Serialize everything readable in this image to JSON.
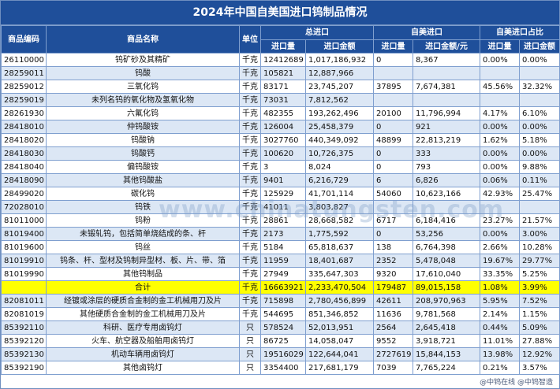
{
  "title": "2024年中国自美国进口钨制品情况",
  "headers": {
    "code": "商品编码",
    "name": "商品名称",
    "unit": "单位",
    "total_import": "总进口",
    "from_us": "自美进口",
    "share": "自美进口占比",
    "qty": "进口量",
    "amount": "进口金额",
    "amount_us": "进口金额/元",
    "qty_share": "进口量",
    "amount_share": "进口金额"
  },
  "rows": [
    {
      "code": "26110000",
      "name": "钨矿砂及其精矿",
      "unit": "千克",
      "qty": "12412689",
      "amount": "1,017,186,932",
      "us_qty": "0",
      "us_amount": "8,367",
      "qty_pct": "0.00%",
      "amt_pct": "0.00%",
      "style": "normal"
    },
    {
      "code": "28259011",
      "name": "钨酸",
      "unit": "千克",
      "qty": "105821",
      "amount": "12,887,966",
      "us_qty": "",
      "us_amount": "",
      "qty_pct": "",
      "amt_pct": "",
      "style": "alt"
    },
    {
      "code": "28259012",
      "name": "三氧化钨",
      "unit": "千克",
      "qty": "83171",
      "amount": "23,745,207",
      "us_qty": "37895",
      "us_amount": "7,674,381",
      "qty_pct": "45.56%",
      "amt_pct": "32.32%",
      "style": "normal"
    },
    {
      "code": "28259019",
      "name": "未列名钨的氧化物及氢氧化物",
      "unit": "千克",
      "qty": "73031",
      "amount": "7,812,562",
      "us_qty": "",
      "us_amount": "",
      "qty_pct": "",
      "amt_pct": "",
      "style": "alt"
    },
    {
      "code": "28261930",
      "name": "六氟化钨",
      "unit": "千克",
      "qty": "482355",
      "amount": "193,262,496",
      "us_qty": "20100",
      "us_amount": "11,796,994",
      "qty_pct": "4.17%",
      "amt_pct": "6.10%",
      "style": "normal"
    },
    {
      "code": "28418010",
      "name": "仲钨酸铵",
      "unit": "千克",
      "qty": "126004",
      "amount": "25,458,379",
      "us_qty": "0",
      "us_amount": "921",
      "qty_pct": "0.00%",
      "amt_pct": "0.00%",
      "style": "alt"
    },
    {
      "code": "28418020",
      "name": "钨酸钠",
      "unit": "千克",
      "qty": "3027760",
      "amount": "440,349,092",
      "us_qty": "48899",
      "us_amount": "22,813,219",
      "qty_pct": "1.62%",
      "amt_pct": "5.18%",
      "style": "normal"
    },
    {
      "code": "28418030",
      "name": "钨酸钙",
      "unit": "千克",
      "qty": "100620",
      "amount": "10,726,375",
      "us_qty": "0",
      "us_amount": "333",
      "qty_pct": "0.00%",
      "amt_pct": "0.00%",
      "style": "alt"
    },
    {
      "code": "28418040",
      "name": "偏钨酸铵",
      "unit": "千克",
      "qty": "3",
      "amount": "8,024",
      "us_qty": "0",
      "us_amount": "793",
      "qty_pct": "0.00%",
      "amt_pct": "9.88%",
      "style": "normal"
    },
    {
      "code": "28418090",
      "name": "其他钨酸盐",
      "unit": "千克",
      "qty": "9401",
      "amount": "6,216,729",
      "us_qty": "6",
      "us_amount": "6,826",
      "qty_pct": "0.06%",
      "amt_pct": "0.11%",
      "style": "alt"
    },
    {
      "code": "28499020",
      "name": "碳化钨",
      "unit": "千克",
      "qty": "125929",
      "amount": "41,701,114",
      "us_qty": "54060",
      "us_amount": "10,623,166",
      "qty_pct": "42.93%",
      "amt_pct": "25.47%",
      "style": "normal"
    },
    {
      "code": "72028010",
      "name": "钨铁",
      "unit": "千克",
      "qty": "41011",
      "amount": "3,803,827",
      "us_qty": "",
      "us_amount": "",
      "qty_pct": "",
      "amt_pct": "",
      "style": "alt"
    },
    {
      "code": "81011000",
      "name": "钨粉",
      "unit": "千克",
      "qty": "28861",
      "amount": "28,668,582",
      "us_qty": "6717",
      "us_amount": "6,184,416",
      "qty_pct": "23.27%",
      "amt_pct": "21.57%",
      "style": "normal"
    },
    {
      "code": "81019400",
      "name": "未锻轧钨，包括简单烧结成的条、杆",
      "unit": "千克",
      "qty": "2173",
      "amount": "1,775,592",
      "us_qty": "0",
      "us_amount": "53,256",
      "qty_pct": "0.00%",
      "amt_pct": "3.00%",
      "style": "alt"
    },
    {
      "code": "81019600",
      "name": "钨丝",
      "unit": "千克",
      "qty": "5184",
      "amount": "65,818,637",
      "us_qty": "138",
      "us_amount": "6,764,398",
      "qty_pct": "2.66%",
      "amt_pct": "10.28%",
      "style": "normal"
    },
    {
      "code": "81019910",
      "name": "钨条、杆、型材及钨制异型材、板、片、带、箔",
      "unit": "千克",
      "qty": "11959",
      "amount": "18,401,687",
      "us_qty": "2352",
      "us_amount": "5,478,048",
      "qty_pct": "19.67%",
      "amt_pct": "29.77%",
      "style": "alt"
    },
    {
      "code": "81019990",
      "name": "其他钨制品",
      "unit": "千克",
      "qty": "27949",
      "amount": "335,647,303",
      "us_qty": "9320",
      "us_amount": "17,610,040",
      "qty_pct": "33.35%",
      "amt_pct": "5.25%",
      "style": "normal"
    },
    {
      "code": "",
      "name": "合计",
      "unit": "千克",
      "qty": "16663921",
      "amount": "2,233,470,504",
      "us_qty": "179487",
      "us_amount": "89,015,158",
      "qty_pct": "1.08%",
      "amt_pct": "3.99%",
      "style": "total"
    },
    {
      "code": "82081011",
      "name": "经镀或涂层的硬质合金制的金工机械用刀及片",
      "unit": "千克",
      "qty": "715898",
      "amount": "2,780,456,899",
      "us_qty": "42611",
      "us_amount": "208,970,963",
      "qty_pct": "5.95%",
      "amt_pct": "7.52%",
      "style": "alt"
    },
    {
      "code": "82081019",
      "name": "其他硬质合金制的金工机械用刀及片",
      "unit": "千克",
      "qty": "544695",
      "amount": "851,346,852",
      "us_qty": "11636",
      "us_amount": "9,781,568",
      "qty_pct": "2.14%",
      "amt_pct": "1.15%",
      "style": "normal"
    },
    {
      "code": "85392110",
      "name": "科研、医疗专用卤钨灯",
      "unit": "只",
      "qty": "578524",
      "amount": "52,013,951",
      "us_qty": "2564",
      "us_amount": "2,645,418",
      "qty_pct": "0.44%",
      "amt_pct": "5.09%",
      "style": "alt"
    },
    {
      "code": "85392120",
      "name": "火车、航空器及船舶用卤钨灯",
      "unit": "只",
      "qty": "86725",
      "amount": "14,058,047",
      "us_qty": "9552",
      "us_amount": "3,918,721",
      "qty_pct": "11.01%",
      "amt_pct": "27.88%",
      "style": "normal"
    },
    {
      "code": "85392130",
      "name": "机动车辆用卤钨灯",
      "unit": "只",
      "qty": "19516029",
      "amount": "122,644,041",
      "us_qty": "2727619",
      "us_amount": "15,844,153",
      "qty_pct": "13.98%",
      "amt_pct": "12.92%",
      "style": "alt"
    },
    {
      "code": "85392190",
      "name": "其他卤钨灯",
      "unit": "只",
      "qty": "3354400",
      "amount": "217,681,179",
      "us_qty": "7039",
      "us_amount": "7,765,224",
      "qty_pct": "0.21%",
      "amt_pct": "3.57%",
      "style": "normal"
    }
  ],
  "watermark": "www.chinatungsten.com",
  "footer": "@中钨在线 @中钨智造"
}
